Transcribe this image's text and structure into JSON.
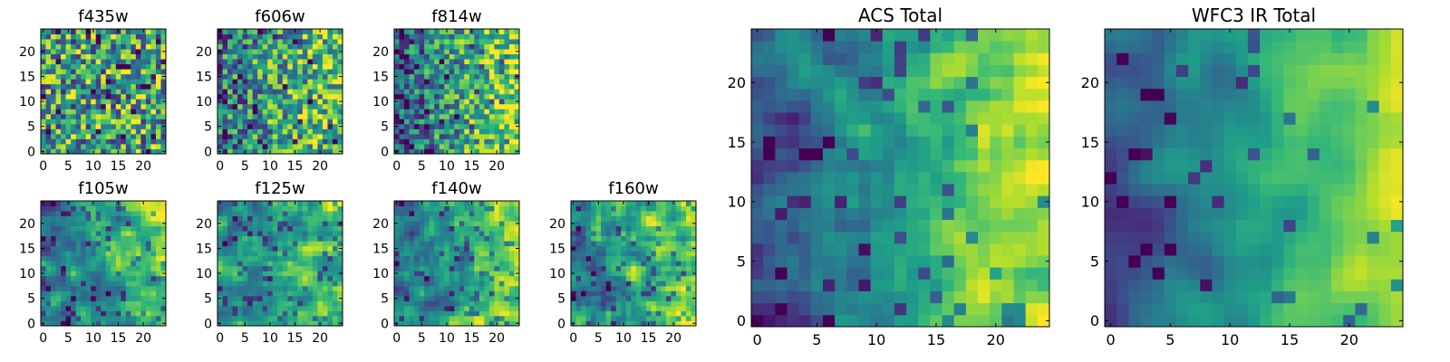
{
  "colors": {
    "colormap": "viridis",
    "background": "#ffffff",
    "axes": "#000000"
  },
  "chart_data": [
    {
      "type": "heatmap",
      "title": "f435w",
      "size": 25,
      "xticks": [
        "0",
        "5",
        "10",
        "15",
        "20"
      ],
      "yticks": [
        "0",
        "5",
        "10",
        "15",
        "20"
      ],
      "gradient": 0.05,
      "noise": 0.9,
      "smooth": 0,
      "darkness": 0.12
    },
    {
      "type": "heatmap",
      "title": "f606w",
      "size": 25,
      "xticks": [
        "0",
        "5",
        "10",
        "15",
        "20"
      ],
      "yticks": [
        "0",
        "5",
        "10",
        "15",
        "20"
      ],
      "gradient": 0.35,
      "noise": 0.8,
      "smooth": 0,
      "darkness": 0.1
    },
    {
      "type": "heatmap",
      "title": "f814w",
      "size": 25,
      "xticks": [
        "0",
        "5",
        "10",
        "15",
        "20"
      ],
      "yticks": [
        "0",
        "5",
        "10",
        "15",
        "20"
      ],
      "gradient": 0.55,
      "noise": 0.7,
      "smooth": 0,
      "darkness": 0.1
    },
    {
      "type": "heatmap",
      "title": "f105w",
      "size": 25,
      "xticks": [
        "0",
        "5",
        "10",
        "15",
        "20"
      ],
      "yticks": [
        "0",
        "5",
        "10",
        "15",
        "20"
      ],
      "gradient": 0.35,
      "noise": 0.6,
      "smooth": 1,
      "darkness": 0.08
    },
    {
      "type": "heatmap",
      "title": "f125w",
      "size": 25,
      "xticks": [
        "0",
        "5",
        "10",
        "15",
        "20"
      ],
      "yticks": [
        "0",
        "5",
        "10",
        "15",
        "20"
      ],
      "gradient": 0.3,
      "noise": 0.65,
      "smooth": 1,
      "darkness": 0.1
    },
    {
      "type": "heatmap",
      "title": "f140w",
      "size": 25,
      "xticks": [
        "0",
        "5",
        "10",
        "15",
        "20"
      ],
      "yticks": [
        "0",
        "5",
        "10",
        "15",
        "20"
      ],
      "gradient": 0.45,
      "noise": 0.6,
      "smooth": 1,
      "darkness": 0.1
    },
    {
      "type": "heatmap",
      "title": "f160w",
      "size": 25,
      "xticks": [
        "0",
        "5",
        "10",
        "15",
        "20"
      ],
      "yticks": [
        "0",
        "5",
        "10",
        "15",
        "20"
      ],
      "gradient": 0.35,
      "noise": 0.7,
      "smooth": 1,
      "darkness": 0.1
    },
    {
      "type": "heatmap",
      "title": "ACS Total",
      "size": 25,
      "xticks": [
        "0",
        "5",
        "10",
        "15",
        "20"
      ],
      "yticks": [
        "0",
        "5",
        "10",
        "15",
        "20"
      ],
      "gradient": 0.65,
      "noise": 0.45,
      "smooth": 1,
      "darkness": 0.08
    },
    {
      "type": "heatmap",
      "title": "WFC3 IR Total",
      "size": 25,
      "xticks": [
        "0",
        "5",
        "10",
        "15",
        "20"
      ],
      "yticks": [
        "0",
        "5",
        "10",
        "15",
        "20"
      ],
      "gradient": 0.6,
      "noise": 0.35,
      "smooth": 2,
      "darkness": 0.06
    }
  ]
}
